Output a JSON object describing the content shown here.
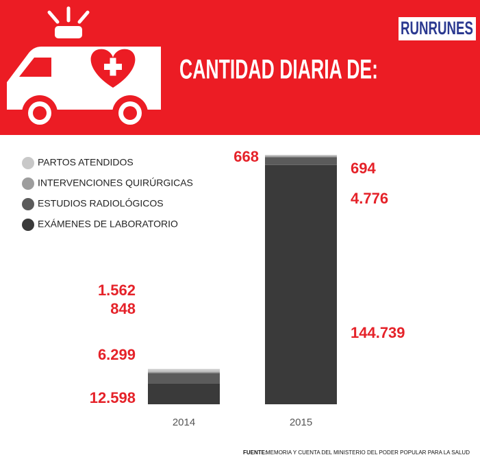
{
  "logo": "RUNRUNES",
  "chart_data": {
    "type": "stacked_bar",
    "title": "CANTIDAD DIARIA DE:",
    "categories": [
      "2014",
      "2015"
    ],
    "series": [
      {
        "name": "PARTOS ATENDIDOS",
        "color": "#c8c8c8",
        "values": [
          1562,
          668
        ],
        "value_labels": [
          "1.562",
          "668"
        ]
      },
      {
        "name": "INTERVENCIONES QUIRÚRGICAS",
        "color": "#9d9d9d",
        "values": [
          848,
          694
        ],
        "value_labels": [
          "848",
          "694"
        ]
      },
      {
        "name": "ESTUDIOS RADIOLÓGICOS",
        "color": "#5b5b5b",
        "values": [
          6299,
          4776
        ],
        "value_labels": [
          "6.299",
          "4.776"
        ]
      },
      {
        "name": "EXÁMENES DE LABORATORIO",
        "color": "#3a3a3a",
        "values": [
          12598,
          144739
        ],
        "value_labels": [
          "12.598",
          "144.739"
        ]
      }
    ],
    "label_color": "#e52229"
  },
  "source": {
    "label": "FUENTE:",
    "text": "MEMORIA Y CUENTA DEL MINISTERIO DEL PODER POPULAR PARA LA SALUD"
  }
}
